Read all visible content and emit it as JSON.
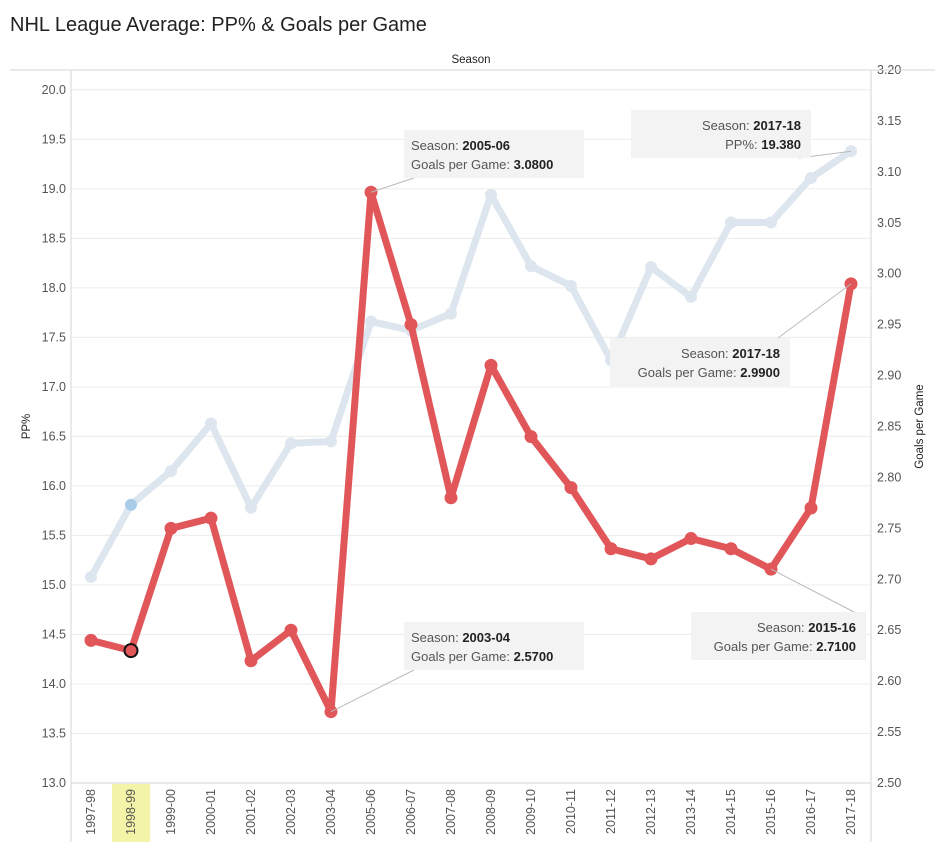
{
  "title": "NHL League Average:  PP%  & Goals per Game",
  "colors": {
    "pp_line": "#dde6ee",
    "pp_highlight": "#a9cde8",
    "gpg_line": "#e15759",
    "selected_band": "#f4f4a8",
    "grid": "#ececec"
  },
  "chart_data": {
    "type": "line",
    "x_title": "Season",
    "categories": [
      "1997-98",
      "1998-99",
      "1999-00",
      "2000-01",
      "2001-02",
      "2002-03",
      "2003-04",
      "2005-06",
      "2006-07",
      "2007-08",
      "2008-09",
      "2009-10",
      "2010-11",
      "2011-12",
      "2012-13",
      "2013-14",
      "2014-15",
      "2015-16",
      "2016-17",
      "2017-18"
    ],
    "selected_category": "1998-99",
    "left_axis": {
      "label": "PP%",
      "ylim": [
        13.0,
        20.2
      ],
      "ticks": [
        "13.0",
        "13.5",
        "14.0",
        "14.5",
        "15.0",
        "15.5",
        "16.0",
        "16.5",
        "17.0",
        "17.5",
        "18.0",
        "18.5",
        "19.0",
        "19.5",
        "20.0"
      ]
    },
    "right_axis": {
      "label": "Goals per Game",
      "ylim": [
        2.5,
        3.2
      ],
      "ticks": [
        "2.50",
        "2.55",
        "2.60",
        "2.65",
        "2.70",
        "2.75",
        "2.80",
        "2.85",
        "2.90",
        "2.95",
        "3.00",
        "3.05",
        "3.10",
        "3.15",
        "3.20"
      ]
    },
    "series": [
      {
        "name": "PP%",
        "axis": "left",
        "values": [
          15.08,
          15.81,
          16.15,
          16.63,
          15.78,
          16.43,
          16.45,
          17.66,
          17.57,
          17.74,
          18.94,
          18.22,
          18.02,
          17.27,
          18.21,
          17.91,
          18.66,
          18.66,
          19.11,
          19.38
        ]
      },
      {
        "name": "Goals per Game",
        "axis": "right",
        "values": [
          2.64,
          2.63,
          2.75,
          2.76,
          2.62,
          2.65,
          2.57,
          3.08,
          2.95,
          2.78,
          2.91,
          2.84,
          2.79,
          2.73,
          2.72,
          2.74,
          2.73,
          2.71,
          2.77,
          2.99
        ]
      }
    ],
    "annotations": [
      {
        "label": "Season:",
        "season": "2017-18",
        "metric": "PP%:",
        "value": "19.380"
      },
      {
        "label": "Season:",
        "season": "2005-06",
        "metric": "Goals per Game:",
        "value": "3.0800"
      },
      {
        "label": "Season:",
        "season": "2017-18",
        "metric": "Goals per Game:",
        "value": "2.9900"
      },
      {
        "label": "Season:",
        "season": "2003-04",
        "metric": "Goals per Game:",
        "value": "2.5700"
      },
      {
        "label": "Season:",
        "season": "2015-16",
        "metric": "Goals per Game:",
        "value": "2.7100"
      }
    ]
  }
}
